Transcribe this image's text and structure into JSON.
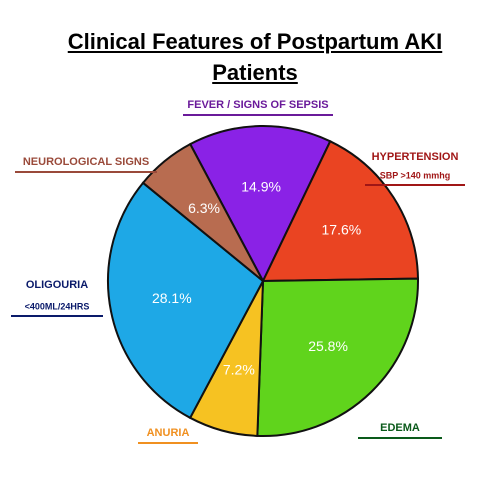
{
  "chart_data": {
    "type": "pie",
    "title": "Clinical Features of Postpartum AKI Patients",
    "categories": [
      "FEVER / SIGNS OF SEPSIS",
      "HYPERTENSION",
      "EDEMA",
      "ANURIA",
      "OLIGOURIA",
      "NEUROLOGICAL SIGNS"
    ],
    "sublabels": [
      null,
      "SBP >140 mmhg",
      null,
      null,
      "<400ML/24HRS",
      null
    ],
    "values": [
      14.9,
      17.6,
      25.8,
      7.2,
      28.1,
      6.3
    ],
    "value_labels": [
      "14.9%",
      "17.6%",
      "25.8%",
      "7.2%",
      "28.1%",
      "6.3%"
    ],
    "colors": [
      "#8a22e6",
      "#ea4422",
      "#60d41c",
      "#f6c222",
      "#1ea8e6",
      "#b86c50"
    ],
    "label_colors": [
      "#6a1a9a",
      "#a01616",
      "#0a5a1a",
      "#f09020",
      "#0a1a6a",
      "#9a4a3a"
    ]
  }
}
